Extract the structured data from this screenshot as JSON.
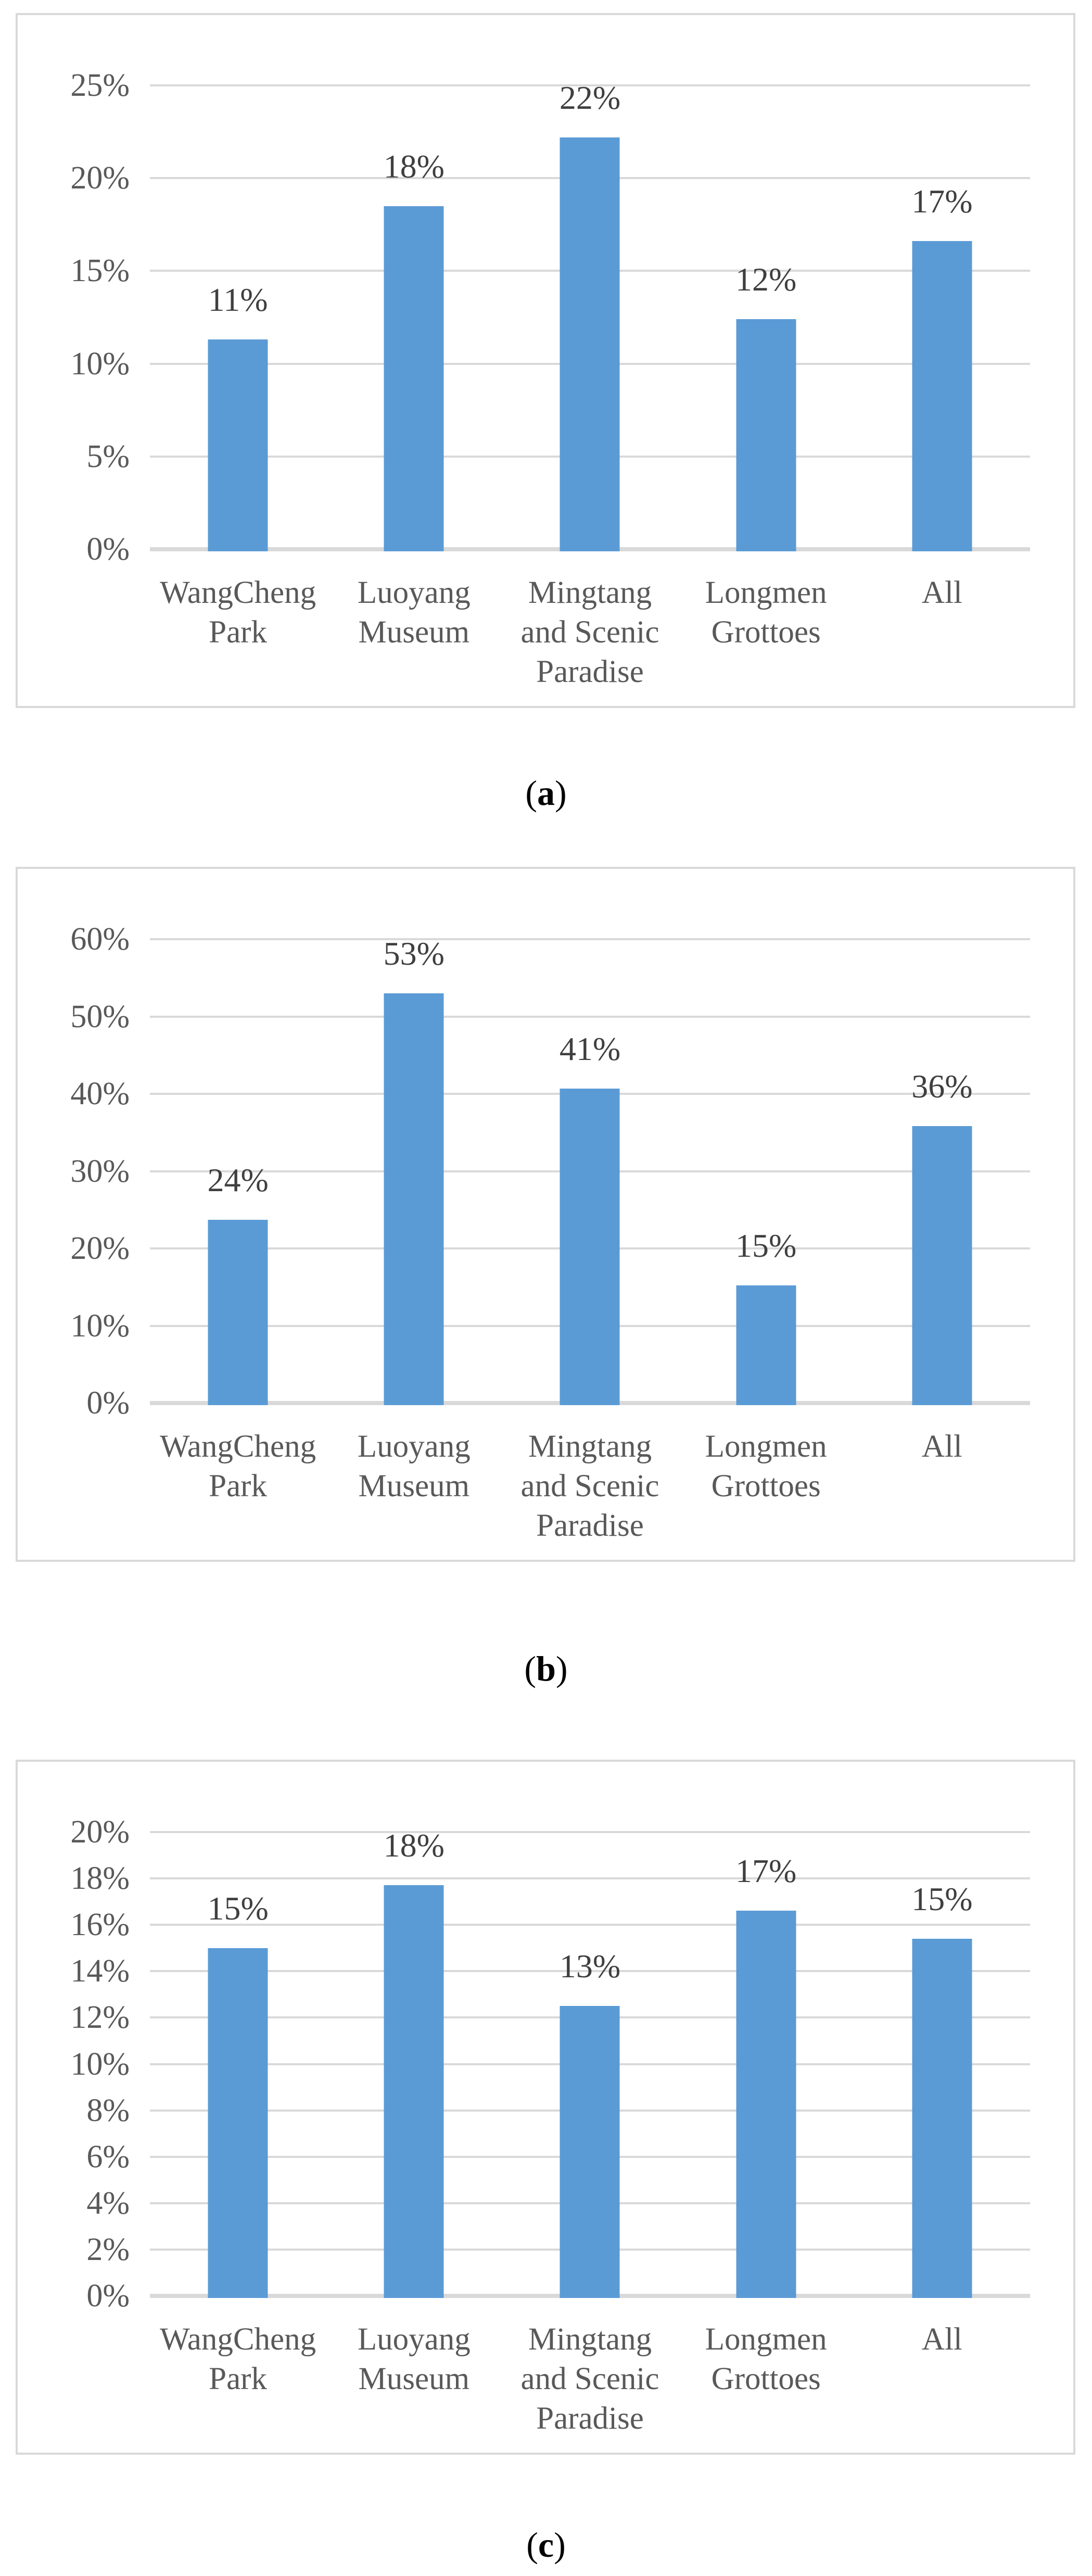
{
  "styles": {
    "bar_color": "#5b9bd5",
    "gridline_color": "#d9d9d9",
    "axis_text_color": "#595959",
    "data_label_color": "#3f3f3f",
    "panel_border_color": "#d9d9d9",
    "background": "#ffffff"
  },
  "captions": [
    {
      "open": "(",
      "letter": "a",
      "close": ")"
    },
    {
      "open": "(",
      "letter": "b",
      "close": ")"
    },
    {
      "open": "(",
      "letter": "c",
      "close": ")"
    }
  ],
  "chart_data": [
    {
      "type": "bar",
      "panel": "a",
      "title": "",
      "xlabel": "",
      "ylabel": "",
      "grid": true,
      "legend": null,
      "categories": [
        "WangCheng Park",
        "Luoyang Museum",
        "Mingtang and Scenic Paradise",
        "Longmen Grottoes",
        "All"
      ],
      "category_lines": [
        [
          "WangCheng",
          "Park"
        ],
        [
          "Luoyang",
          "Museum"
        ],
        [
          "Mingtang",
          "and Scenic",
          "Paradise"
        ],
        [
          "Longmen",
          "Grottoes"
        ],
        [
          "All"
        ]
      ],
      "values": [
        11,
        18,
        22,
        12,
        17
      ],
      "data_labels": [
        "11%",
        "18%",
        "22%",
        "12%",
        "17%"
      ],
      "bar_heights_pct": [
        11.3,
        18.5,
        22.2,
        12.4,
        16.6
      ],
      "ylim": [
        0,
        25
      ],
      "yticks": [
        0,
        5,
        10,
        15,
        20,
        25
      ],
      "ytick_labels": [
        "0%",
        "5%",
        "10%",
        "15%",
        "20%",
        "25%"
      ]
    },
    {
      "type": "bar",
      "panel": "b",
      "title": "",
      "xlabel": "",
      "ylabel": "",
      "grid": true,
      "legend": null,
      "categories": [
        "WangCheng Park",
        "Luoyang Museum",
        "Mingtang and Scenic Paradise",
        "Longmen Grottoes",
        "All"
      ],
      "category_lines": [
        [
          "WangCheng",
          "Park"
        ],
        [
          "Luoyang",
          "Museum"
        ],
        [
          "Mingtang",
          "and Scenic",
          "Paradise"
        ],
        [
          "Longmen",
          "Grottoes"
        ],
        [
          "All"
        ]
      ],
      "values": [
        24,
        53,
        41,
        15,
        36
      ],
      "data_labels": [
        "24%",
        "53%",
        "41%",
        "15%",
        "36%"
      ],
      "bar_heights_pct": [
        23.7,
        53.0,
        40.7,
        15.2,
        35.8
      ],
      "ylim": [
        0,
        60
      ],
      "yticks": [
        0,
        10,
        20,
        30,
        40,
        50,
        60
      ],
      "ytick_labels": [
        "0%",
        "10%",
        "20%",
        "30%",
        "40%",
        "50%",
        "60%"
      ]
    },
    {
      "type": "bar",
      "panel": "c",
      "title": "",
      "xlabel": "",
      "ylabel": "",
      "grid": true,
      "legend": null,
      "categories": [
        "WangCheng Park",
        "Luoyang Museum",
        "Mingtang and Scenic Paradise",
        "Longmen Grottoes",
        "All"
      ],
      "category_lines": [
        [
          "WangCheng",
          "Park"
        ],
        [
          "Luoyang",
          "Museum"
        ],
        [
          "Mingtang",
          "and Scenic",
          "Paradise"
        ],
        [
          "Longmen",
          "Grottoes"
        ],
        [
          "All"
        ]
      ],
      "values": [
        15,
        18,
        13,
        17,
        15
      ],
      "data_labels": [
        "15%",
        "18%",
        "13%",
        "17%",
        "15%"
      ],
      "bar_heights_pct": [
        15.0,
        17.7,
        12.5,
        16.6,
        15.4
      ],
      "ylim": [
        0,
        20
      ],
      "yticks": [
        0,
        2,
        4,
        6,
        8,
        10,
        12,
        14,
        16,
        18,
        20
      ],
      "ytick_labels": [
        "0%",
        "2%",
        "4%",
        "6%",
        "8%",
        "10%",
        "12%",
        "14%",
        "16%",
        "18%",
        "20%"
      ]
    }
  ],
  "layout": {
    "panel_tops": [
      25,
      1665,
      3380
    ],
    "caption_tops": [
      1485,
      3167,
      4850
    ]
  }
}
